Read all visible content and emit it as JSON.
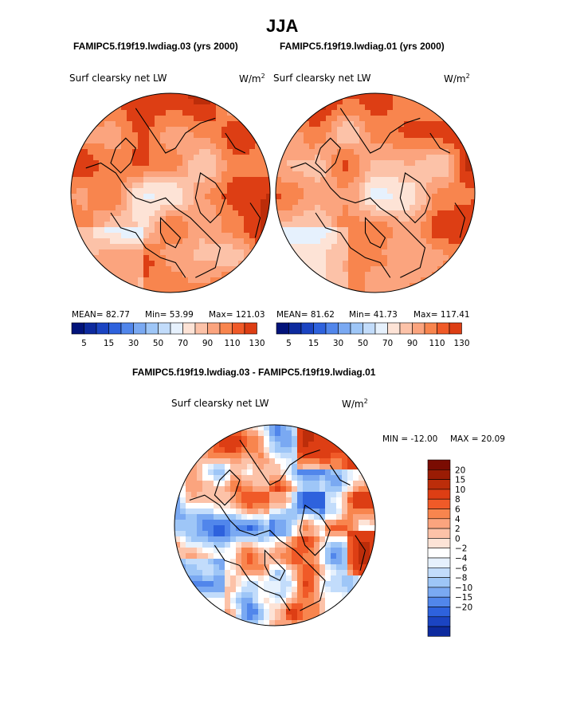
{
  "page_title": "JJA",
  "colors": {
    "positive": [
      "#fde3d6",
      "#fcc2a8",
      "#fba47e",
      "#f8854e",
      "#f05a28",
      "#dd3e14",
      "#bc2d0a",
      "#9a1c04",
      "#7a0c02"
    ],
    "negative": [
      "#e6f1fd",
      "#c2dcfb",
      "#9ec6f7",
      "#7aa9f2",
      "#5186eb",
      "#2e62dd",
      "#1b44c2",
      "#0d2a9e",
      "#02137a"
    ],
    "neutral": "#ffffff",
    "coast": "#000000"
  },
  "chart_data": [
    {
      "type": "heatmap",
      "projection": "north-polar-stereographic",
      "title": "FAMIPC5.f19f19.lwdiag.03 (yrs 2000)",
      "field_label": "Surf clearsky net LW",
      "units": "W/m",
      "units_exp": "2",
      "stats": {
        "mean_label": "MEAN=",
        "mean": "82.77",
        "min_label": "Min=",
        "min": "53.99",
        "max_label": "Max=",
        "max": "121.03"
      },
      "color_levels": [
        5,
        10,
        15,
        20,
        30,
        40,
        50,
        60,
        70,
        80,
        90,
        100,
        110,
        120,
        130
      ],
      "colorbar_labels": [
        "5",
        "15",
        "30",
        "50",
        "70",
        "90",
        "110",
        "130"
      ]
    },
    {
      "type": "heatmap",
      "projection": "north-polar-stereographic",
      "title": "FAMIPC5.f19f19.lwdiag.01 (yrs 2000)",
      "field_label": "Surf clearsky net LW",
      "units": "W/m",
      "units_exp": "2",
      "stats": {
        "mean_label": "MEAN=",
        "mean": "81.62",
        "min_label": "Min=",
        "min": "41.73",
        "max_label": "Max=",
        "max": "117.41"
      },
      "color_levels": [
        5,
        10,
        15,
        20,
        30,
        40,
        50,
        60,
        70,
        80,
        90,
        100,
        110,
        120,
        130
      ],
      "colorbar_labels": [
        "5",
        "15",
        "30",
        "50",
        "70",
        "90",
        "110",
        "130"
      ]
    },
    {
      "type": "heatmap",
      "projection": "north-polar-stereographic",
      "title": "FAMIPC5.f19f19.lwdiag.03 - FAMIPC5.f19f19.lwdiag.01",
      "field_label": "Surf clearsky net LW",
      "units": "W/m",
      "units_exp": "2",
      "stats": {
        "min_label": "MIN =",
        "min": "-12.00",
        "max_label": "MAX =",
        "max": "20.09"
      },
      "color_levels": [
        -20,
        -15,
        -10,
        -8,
        -6,
        -4,
        -2,
        0,
        2,
        4,
        6,
        8,
        10,
        15,
        20
      ],
      "colorbar_labels": [
        "20",
        "15",
        "10",
        "8",
        "6",
        "4",
        "2",
        "0",
        "−2",
        "−4",
        "−6",
        "−8",
        "−10",
        "−15",
        "−20"
      ]
    }
  ]
}
